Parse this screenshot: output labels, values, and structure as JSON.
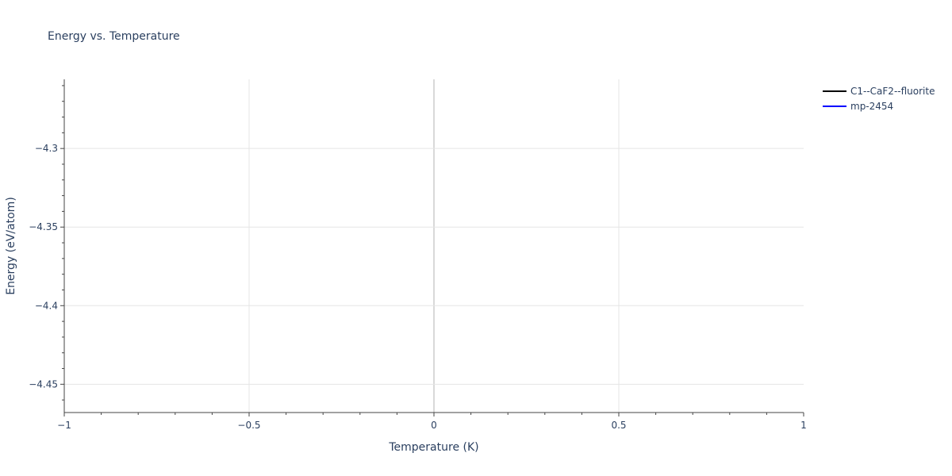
{
  "chart_data": {
    "type": "line",
    "title": "Energy vs. Temperature",
    "xlabel": "Temperature (K)",
    "ylabel": "Energy (eV/atom)",
    "xlim": [
      -1,
      1
    ],
    "ylim": [
      -4.468,
      -4.256
    ],
    "xticks": [
      -1,
      -0.5,
      0,
      0.5,
      1
    ],
    "xtick_labels": [
      "−1",
      "−0.5",
      "0",
      "0.5",
      "1"
    ],
    "yticks": [
      -4.3,
      -4.35,
      -4.4,
      -4.45
    ],
    "ytick_labels": [
      "−4.3",
      "−4.35",
      "−4.4",
      "−4.45"
    ],
    "grid": true,
    "legend_placement": "top-right-outside",
    "series": [
      {
        "name": "C1--CaF2--fluorite",
        "color": "#000000",
        "x": [],
        "y": []
      },
      {
        "name": "mp-2454",
        "color": "#0000ff",
        "x": [],
        "y": []
      }
    ]
  }
}
